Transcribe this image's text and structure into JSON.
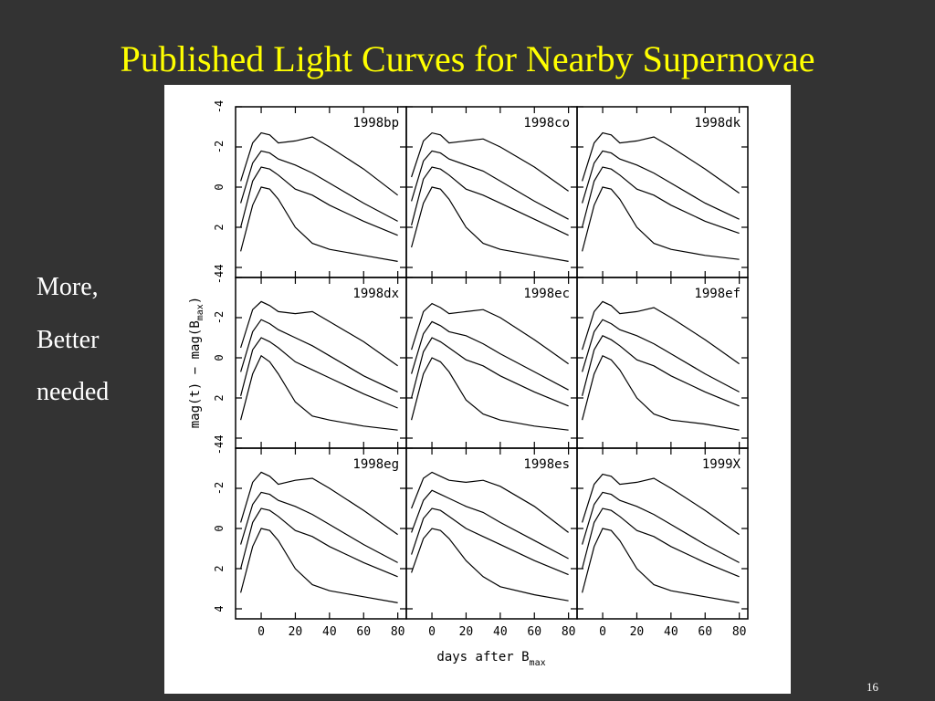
{
  "title": "Published Light Curves for Nearby Supernovae",
  "sidebar": [
    "More,",
    "Better",
    "needed"
  ],
  "page_number": "16",
  "figure": {
    "ylabel_parts": [
      "mag(t) − mag(B",
      "max",
      ")"
    ],
    "xlabel_parts": [
      "days after B",
      "max"
    ]
  },
  "chart_data": [
    {
      "type": "line",
      "title": "1998bp",
      "x": [
        -12,
        -5,
        0,
        5,
        10,
        20,
        30,
        40,
        60,
        80
      ],
      "xlim": [
        -15,
        85
      ],
      "ylim": [
        -4,
        4.5
      ],
      "xticks": [
        0,
        20,
        40,
        60,
        80
      ],
      "yticks": [
        -4,
        -2,
        0,
        2,
        4
      ],
      "series": [
        {
          "color": "#000",
          "values": [
            -0.3,
            -2.2,
            -2.7,
            -2.6,
            -2.2,
            -2.3,
            -2.5,
            -2.0,
            -0.9,
            0.4
          ]
        },
        {
          "color": "#000",
          "values": [
            0.8,
            -1.2,
            -1.8,
            -1.7,
            -1.4,
            -1.1,
            -0.7,
            -0.2,
            0.8,
            1.7
          ]
        },
        {
          "color": "#000",
          "values": [
            2.0,
            -0.3,
            -1.0,
            -0.9,
            -0.6,
            0.1,
            0.4,
            0.9,
            1.7,
            2.4
          ]
        },
        {
          "color": "#000",
          "values": [
            3.2,
            0.9,
            0.0,
            0.1,
            0.6,
            2.0,
            2.8,
            3.1,
            3.4,
            3.7
          ]
        }
      ]
    },
    {
      "type": "line",
      "title": "1998co",
      "x": [
        -12,
        -5,
        0,
        5,
        10,
        20,
        30,
        40,
        60,
        80
      ],
      "xlim": [
        -15,
        85
      ],
      "ylim": [
        -4,
        4.5
      ],
      "xticks": [
        0,
        20,
        40,
        60,
        80
      ],
      "yticks": [
        -4,
        -2,
        0,
        2,
        4
      ],
      "series": [
        {
          "color": "#000",
          "values": [
            -0.5,
            -2.3,
            -2.7,
            -2.6,
            -2.2,
            -2.3,
            -2.4,
            -2.0,
            -1.0,
            0.2
          ]
        },
        {
          "color": "#000",
          "values": [
            0.7,
            -1.3,
            -1.8,
            -1.7,
            -1.4,
            -1.1,
            -0.8,
            -0.3,
            0.7,
            1.6
          ]
        },
        {
          "color": "#000",
          "values": [
            1.9,
            -0.4,
            -1.0,
            -0.9,
            -0.6,
            0.1,
            0.4,
            0.8,
            1.6,
            2.4
          ]
        },
        {
          "color": "#000",
          "values": [
            3.0,
            0.8,
            0.0,
            0.1,
            0.6,
            2.0,
            2.8,
            3.1,
            3.4,
            3.7
          ]
        }
      ]
    },
    {
      "type": "line",
      "title": "1998dk",
      "x": [
        -12,
        -5,
        0,
        5,
        10,
        20,
        30,
        40,
        60,
        80
      ],
      "xlim": [
        -15,
        85
      ],
      "ylim": [
        -4,
        4.5
      ],
      "xticks": [
        0,
        20,
        40,
        60,
        80
      ],
      "yticks": [
        -4,
        -2,
        0,
        2,
        4
      ],
      "series": [
        {
          "color": "#000",
          "values": [
            -0.3,
            -2.2,
            -2.7,
            -2.6,
            -2.2,
            -2.3,
            -2.5,
            -2.0,
            -0.9,
            0.3
          ]
        },
        {
          "color": "#000",
          "values": [
            0.8,
            -1.2,
            -1.8,
            -1.7,
            -1.4,
            -1.1,
            -0.7,
            -0.2,
            0.8,
            1.6
          ]
        },
        {
          "color": "#000",
          "values": [
            2.0,
            -0.3,
            -1.0,
            -0.9,
            -0.6,
            0.1,
            0.4,
            0.9,
            1.7,
            2.3
          ]
        },
        {
          "color": "#000",
          "values": [
            3.2,
            0.9,
            0.0,
            0.1,
            0.6,
            2.0,
            2.8,
            3.1,
            3.4,
            3.6
          ]
        }
      ]
    },
    {
      "type": "line",
      "title": "1998dx",
      "x": [
        -12,
        -5,
        0,
        5,
        10,
        20,
        30,
        40,
        60,
        80
      ],
      "xlim": [
        -15,
        85
      ],
      "ylim": [
        -4,
        4.5
      ],
      "xticks": [
        0,
        20,
        40,
        60,
        80
      ],
      "yticks": [
        -4,
        -2,
        0,
        2,
        4
      ],
      "series": [
        {
          "color": "#000",
          "values": [
            -0.5,
            -2.4,
            -2.8,
            -2.6,
            -2.3,
            -2.2,
            -2.3,
            -1.8,
            -0.8,
            0.4
          ]
        },
        {
          "color": "#000",
          "values": [
            0.7,
            -1.3,
            -1.9,
            -1.7,
            -1.4,
            -1.0,
            -0.6,
            -0.1,
            0.9,
            1.7
          ]
        },
        {
          "color": "#000",
          "values": [
            1.9,
            -0.4,
            -1.0,
            -0.8,
            -0.5,
            0.2,
            0.6,
            1.0,
            1.8,
            2.5
          ]
        },
        {
          "color": "#000",
          "values": [
            3.1,
            0.8,
            -0.1,
            0.2,
            0.8,
            2.2,
            2.9,
            3.1,
            3.4,
            3.6
          ]
        }
      ]
    },
    {
      "type": "line",
      "title": "1998ec",
      "x": [
        -12,
        -5,
        0,
        5,
        10,
        20,
        30,
        40,
        60,
        80
      ],
      "xlim": [
        -15,
        85
      ],
      "ylim": [
        -4,
        4.5
      ],
      "xticks": [
        0,
        20,
        40,
        60,
        80
      ],
      "yticks": [
        -4,
        -2,
        0,
        2,
        4
      ],
      "series": [
        {
          "color": "#000",
          "values": [
            -0.4,
            -2.3,
            -2.7,
            -2.5,
            -2.2,
            -2.3,
            -2.4,
            -2.0,
            -0.9,
            0.3
          ]
        },
        {
          "color": "#000",
          "values": [
            0.8,
            -1.2,
            -1.8,
            -1.6,
            -1.3,
            -1.1,
            -0.7,
            -0.2,
            0.7,
            1.6
          ]
        },
        {
          "color": "#000",
          "values": [
            2.0,
            -0.3,
            -1.0,
            -0.8,
            -0.5,
            0.1,
            0.4,
            0.9,
            1.7,
            2.4
          ]
        },
        {
          "color": "#000",
          "values": [
            3.1,
            0.8,
            0.0,
            0.2,
            0.7,
            2.1,
            2.8,
            3.1,
            3.4,
            3.6
          ]
        }
      ]
    },
    {
      "type": "line",
      "title": "1998ef",
      "x": [
        -12,
        -5,
        0,
        5,
        10,
        20,
        30,
        40,
        60,
        80
      ],
      "xlim": [
        -15,
        85
      ],
      "ylim": [
        -4,
        4.5
      ],
      "xticks": [
        0,
        20,
        40,
        60,
        80
      ],
      "yticks": [
        -4,
        -2,
        0,
        2,
        4
      ],
      "series": [
        {
          "color": "#000",
          "values": [
            -0.4,
            -2.3,
            -2.8,
            -2.6,
            -2.2,
            -2.3,
            -2.5,
            -2.0,
            -0.9,
            0.3
          ]
        },
        {
          "color": "#000",
          "values": [
            0.7,
            -1.3,
            -1.9,
            -1.7,
            -1.4,
            -1.1,
            -0.7,
            -0.2,
            0.8,
            1.7
          ]
        },
        {
          "color": "#000",
          "values": [
            1.9,
            -0.4,
            -1.1,
            -0.9,
            -0.6,
            0.1,
            0.4,
            0.9,
            1.7,
            2.4
          ]
        },
        {
          "color": "#000",
          "values": [
            3.1,
            0.8,
            -0.1,
            0.1,
            0.6,
            2.0,
            2.8,
            3.1,
            3.3,
            3.6
          ]
        }
      ]
    },
    {
      "type": "line",
      "title": "1998eg",
      "x": [
        -12,
        -5,
        0,
        5,
        10,
        20,
        30,
        40,
        60,
        80
      ],
      "xlim": [
        -15,
        85
      ],
      "ylim": [
        -4,
        4.5
      ],
      "xticks": [
        0,
        20,
        40,
        60,
        80
      ],
      "yticks": [
        -4,
        -2,
        0,
        2,
        4
      ],
      "series": [
        {
          "color": "#000",
          "values": [
            -0.3,
            -2.3,
            -2.8,
            -2.6,
            -2.2,
            -2.4,
            -2.5,
            -2.0,
            -0.9,
            0.3
          ]
        },
        {
          "color": "#000",
          "values": [
            0.8,
            -1.2,
            -1.8,
            -1.7,
            -1.4,
            -1.1,
            -0.7,
            -0.2,
            0.8,
            1.7
          ]
        },
        {
          "color": "#000",
          "values": [
            2.0,
            -0.3,
            -1.0,
            -0.9,
            -0.6,
            0.1,
            0.4,
            0.9,
            1.7,
            2.4
          ]
        },
        {
          "color": "#000",
          "values": [
            3.2,
            0.9,
            0.0,
            0.1,
            0.6,
            2.0,
            2.8,
            3.1,
            3.4,
            3.7
          ]
        }
      ]
    },
    {
      "type": "line",
      "title": "1998es",
      "x": [
        -12,
        -5,
        0,
        5,
        10,
        20,
        30,
        40,
        60,
        80
      ],
      "xlim": [
        -15,
        85
      ],
      "ylim": [
        -4,
        4.5
      ],
      "xticks": [
        0,
        20,
        40,
        60,
        80
      ],
      "yticks": [
        -4,
        -2,
        0,
        2,
        4
      ],
      "series": [
        {
          "color": "#000",
          "values": [
            -1.0,
            -2.5,
            -2.8,
            -2.6,
            -2.4,
            -2.3,
            -2.4,
            -2.1,
            -1.1,
            0.2
          ]
        },
        {
          "color": "#000",
          "values": [
            0.2,
            -1.4,
            -1.9,
            -1.7,
            -1.5,
            -1.1,
            -0.8,
            -0.3,
            0.6,
            1.5
          ]
        },
        {
          "color": "#000",
          "values": [
            1.3,
            -0.5,
            -1.0,
            -0.9,
            -0.6,
            0.0,
            0.4,
            0.8,
            1.6,
            2.3
          ]
        },
        {
          "color": "#000",
          "values": [
            2.2,
            0.5,
            0.0,
            0.1,
            0.5,
            1.6,
            2.4,
            2.9,
            3.3,
            3.6
          ]
        }
      ]
    },
    {
      "type": "line",
      "title": "1999X",
      "x": [
        -12,
        -5,
        0,
        5,
        10,
        20,
        30,
        40,
        60,
        80
      ],
      "xlim": [
        -15,
        85
      ],
      "ylim": [
        -4,
        4.5
      ],
      "xticks": [
        0,
        20,
        40,
        60,
        80
      ],
      "yticks": [
        -4,
        -2,
        0,
        2,
        4
      ],
      "series": [
        {
          "color": "#000",
          "values": [
            -0.3,
            -2.2,
            -2.7,
            -2.6,
            -2.2,
            -2.3,
            -2.5,
            -2.0,
            -0.9,
            0.3
          ]
        },
        {
          "color": "#000",
          "values": [
            0.8,
            -1.2,
            -1.8,
            -1.7,
            -1.4,
            -1.1,
            -0.7,
            -0.2,
            0.8,
            1.7
          ]
        },
        {
          "color": "#000",
          "values": [
            2.0,
            -0.3,
            -1.0,
            -0.9,
            -0.6,
            0.1,
            0.4,
            0.9,
            1.7,
            2.4
          ]
        },
        {
          "color": "#000",
          "values": [
            3.2,
            0.9,
            0.0,
            0.1,
            0.6,
            2.0,
            2.8,
            3.1,
            3.4,
            3.7
          ]
        }
      ]
    }
  ]
}
